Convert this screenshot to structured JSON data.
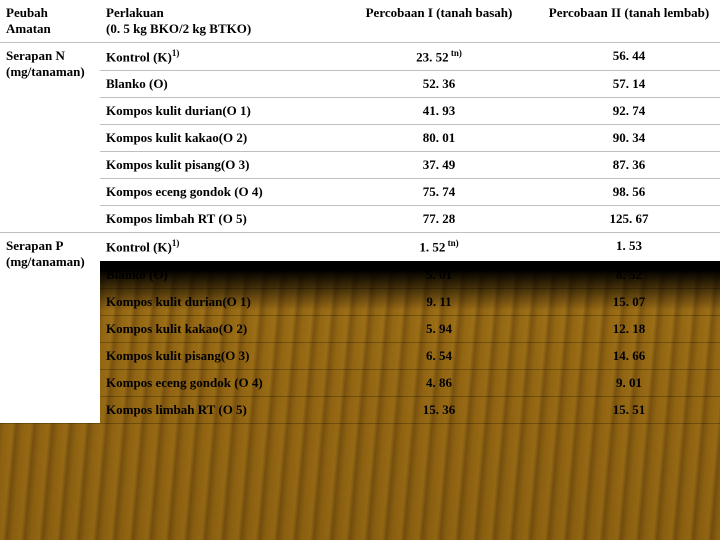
{
  "headers": {
    "peubah": "Peubah Amatan",
    "perlakuan": "Perlakuan\n(0. 5 kg BKO/2 kg BTKO)",
    "percobaan1": "Percobaan I (tanah basah)",
    "percobaan2": "Percobaan II (tanah lembab)"
  },
  "groups": [
    {
      "label": "Serapan N (mg/tanaman)",
      "rows": [
        {
          "perlakuan": "Kontrol (K)",
          "sup": "1)",
          "v1": "23. 52",
          "v1sup": "tn)",
          "v2": "56. 44",
          "lower": false
        },
        {
          "perlakuan": "Blanko (O)",
          "v1": "52. 36",
          "v2": "57. 14",
          "lower": false
        },
        {
          "perlakuan": "Kompos kulit durian(O 1)",
          "v1": "41. 93",
          "v2": "92. 74",
          "lower": false
        },
        {
          "perlakuan": "Kompos kulit kakao(O 2)",
          "v1": "80. 01",
          "v2": "90. 34",
          "lower": false
        },
        {
          "perlakuan": "Kompos kulit pisang(O 3)",
          "v1": "37. 49",
          "v2": "87. 36",
          "lower": false
        },
        {
          "perlakuan": "Kompos eceng gondok (O 4)",
          "v1": "75. 74",
          "v2": "98. 56",
          "lower": false
        },
        {
          "perlakuan": "Kompos limbah RT (O 5)",
          "v1": "77. 28",
          "v2": "125. 67",
          "lower": false
        }
      ]
    },
    {
      "label": "Serapan P (mg/tanaman)",
      "rows": [
        {
          "perlakuan": "Kontrol (K)",
          "sup": "1)",
          "v1": "1. 52",
          "v1sup": "tn)",
          "v2": "1. 53",
          "lower": false
        },
        {
          "perlakuan": "Blanko (O)",
          "v1": "5. 01",
          "v2": "8. 52",
          "lower": true
        },
        {
          "perlakuan": "Kompos kulit durian(O 1)",
          "v1": "9. 11",
          "v2": "15. 07",
          "lower": true
        },
        {
          "perlakuan": "Kompos kulit kakao(O 2)",
          "v1": "5. 94",
          "v2": "12. 18",
          "lower": true
        },
        {
          "perlakuan": "Kompos kulit pisang(O 3)",
          "v1": "6. 54",
          "v2": "14. 66",
          "lower": true
        },
        {
          "perlakuan": "Kompos eceng gondok (O 4)",
          "v1": "4. 86",
          "v2": "9. 01",
          "lower": true
        },
        {
          "perlakuan": "Kompos limbah RT (O 5)",
          "v1": "15. 36",
          "v2": "15. 51",
          "lower": true
        }
      ]
    }
  ],
  "colors": {
    "rowBg": "#ffffff",
    "text": "#000000",
    "sand1": "#c9a84a",
    "sand2": "#a8893a"
  }
}
